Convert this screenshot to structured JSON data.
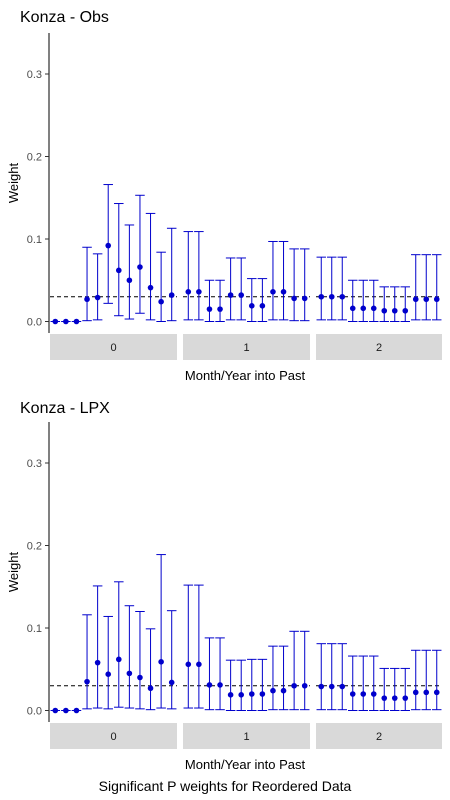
{
  "figure": {
    "caption": "Significant P weights for Reordered Data"
  },
  "colors": {
    "series": "#0000cc",
    "reference_line": "#000000",
    "strip_fill": "#d9d9d9",
    "axis": "#000000",
    "tick_label": "#4d4d4d"
  },
  "chart_data": [
    {
      "type": "scatter",
      "title": "Konza - Obs",
      "xlabel": "Month/Year into Past",
      "ylabel": "Weight",
      "ylim": [
        0,
        0.35
      ],
      "yticks": [
        0.0,
        0.1,
        0.2,
        0.3
      ],
      "ytick_labels": [
        "0.0",
        "0.1",
        "0.2",
        "0.3"
      ],
      "reference_line": 0.03,
      "grid": false,
      "facets": [
        {
          "label": "0",
          "points": [
            {
              "y": 0.0,
              "lower": 0.0,
              "upper": 0.0
            },
            {
              "y": 0.0,
              "lower": 0.0,
              "upper": 0.0
            },
            {
              "y": 0.0,
              "lower": 0.0,
              "upper": 0.0
            },
            {
              "y": 0.027,
              "lower": 0.001,
              "upper": 0.09
            },
            {
              "y": 0.029,
              "lower": 0.002,
              "upper": 0.082
            },
            {
              "y": 0.092,
              "lower": 0.022,
              "upper": 0.166
            },
            {
              "y": 0.062,
              "lower": 0.007,
              "upper": 0.143
            },
            {
              "y": 0.05,
              "lower": 0.003,
              "upper": 0.117
            },
            {
              "y": 0.066,
              "lower": 0.01,
              "upper": 0.153
            },
            {
              "y": 0.041,
              "lower": 0.002,
              "upper": 0.131
            },
            {
              "y": 0.024,
              "lower": 0.0,
              "upper": 0.084
            },
            {
              "y": 0.032,
              "lower": 0.001,
              "upper": 0.113
            }
          ]
        },
        {
          "label": "1",
          "points": [
            {
              "y": 0.036,
              "lower": 0.002,
              "upper": 0.109
            },
            {
              "y": 0.036,
              "lower": 0.002,
              "upper": 0.109
            },
            {
              "y": 0.015,
              "lower": 0.0,
              "upper": 0.05
            },
            {
              "y": 0.015,
              "lower": 0.0,
              "upper": 0.05
            },
            {
              "y": 0.032,
              "lower": 0.002,
              "upper": 0.077
            },
            {
              "y": 0.032,
              "lower": 0.002,
              "upper": 0.077
            },
            {
              "y": 0.019,
              "lower": 0.0,
              "upper": 0.052
            },
            {
              "y": 0.019,
              "lower": 0.0,
              "upper": 0.052
            },
            {
              "y": 0.036,
              "lower": 0.002,
              "upper": 0.097
            },
            {
              "y": 0.036,
              "lower": 0.002,
              "upper": 0.097
            },
            {
              "y": 0.028,
              "lower": 0.001,
              "upper": 0.088
            },
            {
              "y": 0.028,
              "lower": 0.001,
              "upper": 0.088
            }
          ]
        },
        {
          "label": "2",
          "points": [
            {
              "y": 0.03,
              "lower": 0.002,
              "upper": 0.078
            },
            {
              "y": 0.03,
              "lower": 0.002,
              "upper": 0.078
            },
            {
              "y": 0.03,
              "lower": 0.002,
              "upper": 0.078
            },
            {
              "y": 0.016,
              "lower": 0.0,
              "upper": 0.05
            },
            {
              "y": 0.016,
              "lower": 0.0,
              "upper": 0.05
            },
            {
              "y": 0.016,
              "lower": 0.0,
              "upper": 0.05
            },
            {
              "y": 0.013,
              "lower": 0.0,
              "upper": 0.042
            },
            {
              "y": 0.013,
              "lower": 0.0,
              "upper": 0.042
            },
            {
              "y": 0.013,
              "lower": 0.0,
              "upper": 0.042
            },
            {
              "y": 0.027,
              "lower": 0.002,
              "upper": 0.081
            },
            {
              "y": 0.027,
              "lower": 0.002,
              "upper": 0.081
            },
            {
              "y": 0.027,
              "lower": 0.002,
              "upper": 0.081
            }
          ]
        }
      ]
    },
    {
      "type": "scatter",
      "title": "Konza - LPX",
      "xlabel": "Month/Year into Past",
      "ylabel": "Weight",
      "ylim": [
        0,
        0.35
      ],
      "yticks": [
        0.0,
        0.1,
        0.2,
        0.3
      ],
      "ytick_labels": [
        "0.0",
        "0.1",
        "0.2",
        "0.3"
      ],
      "reference_line": 0.03,
      "grid": false,
      "facets": [
        {
          "label": "0",
          "points": [
            {
              "y": 0.0,
              "lower": 0.0,
              "upper": 0.0
            },
            {
              "y": 0.0,
              "lower": 0.0,
              "upper": 0.0
            },
            {
              "y": 0.0,
              "lower": 0.0,
              "upper": 0.0
            },
            {
              "y": 0.035,
              "lower": 0.002,
              "upper": 0.116
            },
            {
              "y": 0.058,
              "lower": 0.003,
              "upper": 0.151
            },
            {
              "y": 0.044,
              "lower": 0.002,
              "upper": 0.114
            },
            {
              "y": 0.062,
              "lower": 0.004,
              "upper": 0.156
            },
            {
              "y": 0.045,
              "lower": 0.003,
              "upper": 0.127
            },
            {
              "y": 0.04,
              "lower": 0.002,
              "upper": 0.12
            },
            {
              "y": 0.027,
              "lower": 0.001,
              "upper": 0.099
            },
            {
              "y": 0.059,
              "lower": 0.003,
              "upper": 0.189
            },
            {
              "y": 0.034,
              "lower": 0.002,
              "upper": 0.121
            }
          ]
        },
        {
          "label": "1",
          "points": [
            {
              "y": 0.056,
              "lower": 0.003,
              "upper": 0.152
            },
            {
              "y": 0.056,
              "lower": 0.003,
              "upper": 0.152
            },
            {
              "y": 0.031,
              "lower": 0.001,
              "upper": 0.088
            },
            {
              "y": 0.031,
              "lower": 0.001,
              "upper": 0.088
            },
            {
              "y": 0.019,
              "lower": 0.0,
              "upper": 0.061
            },
            {
              "y": 0.019,
              "lower": 0.0,
              "upper": 0.061
            },
            {
              "y": 0.02,
              "lower": 0.0,
              "upper": 0.062
            },
            {
              "y": 0.02,
              "lower": 0.0,
              "upper": 0.062
            },
            {
              "y": 0.024,
              "lower": 0.001,
              "upper": 0.078
            },
            {
              "y": 0.024,
              "lower": 0.001,
              "upper": 0.078
            },
            {
              "y": 0.03,
              "lower": 0.001,
              "upper": 0.096
            },
            {
              "y": 0.03,
              "lower": 0.001,
              "upper": 0.096
            }
          ]
        },
        {
          "label": "2",
          "points": [
            {
              "y": 0.029,
              "lower": 0.001,
              "upper": 0.081
            },
            {
              "y": 0.029,
              "lower": 0.001,
              "upper": 0.081
            },
            {
              "y": 0.029,
              "lower": 0.001,
              "upper": 0.081
            },
            {
              "y": 0.02,
              "lower": 0.0,
              "upper": 0.066
            },
            {
              "y": 0.02,
              "lower": 0.0,
              "upper": 0.066
            },
            {
              "y": 0.02,
              "lower": 0.0,
              "upper": 0.066
            },
            {
              "y": 0.015,
              "lower": 0.0,
              "upper": 0.051
            },
            {
              "y": 0.015,
              "lower": 0.0,
              "upper": 0.051
            },
            {
              "y": 0.015,
              "lower": 0.0,
              "upper": 0.051
            },
            {
              "y": 0.022,
              "lower": 0.001,
              "upper": 0.073
            },
            {
              "y": 0.022,
              "lower": 0.001,
              "upper": 0.073
            },
            {
              "y": 0.022,
              "lower": 0.001,
              "upper": 0.073
            }
          ]
        }
      ]
    }
  ]
}
